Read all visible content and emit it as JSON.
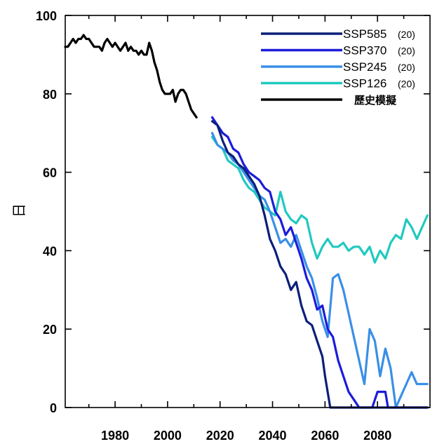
{
  "chart_data": {
    "type": "line",
    "title": "",
    "xlabel": "",
    "ylabel": "日",
    "xlim": [
      1961,
      2100
    ],
    "ylim": [
      0,
      100
    ],
    "x_ticks": [
      1980,
      2000,
      2020,
      2040,
      2060,
      2080
    ],
    "y_ticks": [
      0,
      20,
      40,
      60,
      80,
      100
    ],
    "grid": false,
    "legend_position": "top-right",
    "series": [
      {
        "name": "SSP585",
        "count_label": "(20)",
        "color": "#0b1f7a",
        "points": [
          [
            2017,
            73
          ],
          [
            2019,
            72
          ],
          [
            2021,
            68
          ],
          [
            2023,
            65
          ],
          [
            2025,
            64
          ],
          [
            2027,
            62
          ],
          [
            2029,
            61
          ],
          [
            2031,
            59
          ],
          [
            2033,
            57
          ],
          [
            2035,
            54
          ],
          [
            2037,
            49
          ],
          [
            2039,
            43
          ],
          [
            2041,
            40
          ],
          [
            2043,
            36
          ],
          [
            2045,
            34
          ],
          [
            2047,
            30
          ],
          [
            2049,
            32
          ],
          [
            2051,
            26
          ],
          [
            2053,
            22
          ],
          [
            2055,
            21
          ],
          [
            2057,
            17
          ],
          [
            2059,
            13
          ],
          [
            2060,
            8
          ],
          [
            2061,
            4
          ],
          [
            2062,
            0
          ],
          [
            2070,
            0
          ],
          [
            2080,
            0
          ],
          [
            2090,
            0
          ],
          [
            2099,
            0
          ]
        ]
      },
      {
        "name": "SSP370",
        "count_label": "(20)",
        "color": "#1c1cdb",
        "points": [
          [
            2017,
            74
          ],
          [
            2019,
            72
          ],
          [
            2021,
            70
          ],
          [
            2023,
            69
          ],
          [
            2025,
            66
          ],
          [
            2027,
            65
          ],
          [
            2029,
            62
          ],
          [
            2031,
            60
          ],
          [
            2033,
            59
          ],
          [
            2035,
            58
          ],
          [
            2037,
            56
          ],
          [
            2039,
            55
          ],
          [
            2041,
            50
          ],
          [
            2043,
            48
          ],
          [
            2045,
            44
          ],
          [
            2047,
            46
          ],
          [
            2049,
            42
          ],
          [
            2051,
            38
          ],
          [
            2053,
            33
          ],
          [
            2055,
            30
          ],
          [
            2057,
            25
          ],
          [
            2059,
            26
          ],
          [
            2061,
            20
          ],
          [
            2063,
            18
          ],
          [
            2065,
            12
          ],
          [
            2067,
            8
          ],
          [
            2069,
            4
          ],
          [
            2071,
            2
          ],
          [
            2073,
            0
          ],
          [
            2078,
            0
          ],
          [
            2080,
            4
          ],
          [
            2083,
            4
          ],
          [
            2084,
            0
          ],
          [
            2090,
            0
          ],
          [
            2099,
            0
          ]
        ]
      },
      {
        "name": "SSP245",
        "count_label": "(20)",
        "color": "#3a8fe8",
        "points": [
          [
            2017,
            70
          ],
          [
            2019,
            67
          ],
          [
            2021,
            66
          ],
          [
            2023,
            65
          ],
          [
            2025,
            63
          ],
          [
            2027,
            62
          ],
          [
            2029,
            60
          ],
          [
            2031,
            58
          ],
          [
            2033,
            56
          ],
          [
            2035,
            54
          ],
          [
            2037,
            53
          ],
          [
            2039,
            50
          ],
          [
            2041,
            46
          ],
          [
            2043,
            42
          ],
          [
            2045,
            43
          ],
          [
            2047,
            41
          ],
          [
            2049,
            44
          ],
          [
            2051,
            40
          ],
          [
            2053,
            36
          ],
          [
            2055,
            33
          ],
          [
            2057,
            28
          ],
          [
            2059,
            22
          ],
          [
            2061,
            18
          ],
          [
            2063,
            33
          ],
          [
            2065,
            34
          ],
          [
            2067,
            30
          ],
          [
            2069,
            24
          ],
          [
            2071,
            18
          ],
          [
            2073,
            12
          ],
          [
            2075,
            6
          ],
          [
            2077,
            20
          ],
          [
            2079,
            17
          ],
          [
            2081,
            8
          ],
          [
            2083,
            15
          ],
          [
            2085,
            10
          ],
          [
            2087,
            0
          ],
          [
            2089,
            3
          ],
          [
            2091,
            6
          ],
          [
            2093,
            9
          ],
          [
            2095,
            6
          ],
          [
            2097,
            6
          ],
          [
            2099,
            6
          ]
        ]
      },
      {
        "name": "SSP126",
        "count_label": "(20)",
        "color": "#20c9c0",
        "points": [
          [
            2017,
            69
          ],
          [
            2019,
            67
          ],
          [
            2021,
            66
          ],
          [
            2023,
            63
          ],
          [
            2025,
            62
          ],
          [
            2027,
            61
          ],
          [
            2029,
            58
          ],
          [
            2031,
            56
          ],
          [
            2033,
            55
          ],
          [
            2035,
            53
          ],
          [
            2037,
            51
          ],
          [
            2039,
            50
          ],
          [
            2041,
            49
          ],
          [
            2043,
            55
          ],
          [
            2045,
            50
          ],
          [
            2047,
            48
          ],
          [
            2049,
            47
          ],
          [
            2051,
            49
          ],
          [
            2053,
            48
          ],
          [
            2055,
            42
          ],
          [
            2057,
            38
          ],
          [
            2059,
            41
          ],
          [
            2061,
            43
          ],
          [
            2063,
            41
          ],
          [
            2065,
            41
          ],
          [
            2067,
            42
          ],
          [
            2069,
            40
          ],
          [
            2071,
            41
          ],
          [
            2073,
            41
          ],
          [
            2075,
            39
          ],
          [
            2077,
            41
          ],
          [
            2079,
            37
          ],
          [
            2081,
            40
          ],
          [
            2083,
            38
          ],
          [
            2085,
            42
          ],
          [
            2087,
            44
          ],
          [
            2089,
            43
          ],
          [
            2091,
            48
          ],
          [
            2093,
            46
          ],
          [
            2095,
            43
          ],
          [
            2097,
            46
          ],
          [
            2099,
            49
          ]
        ]
      },
      {
        "name": "歷史模擬",
        "count_label": "",
        "color": "#000000",
        "points": [
          [
            1961,
            92
          ],
          [
            1962,
            92
          ],
          [
            1963,
            93
          ],
          [
            1964,
            94
          ],
          [
            1965,
            93
          ],
          [
            1966,
            94
          ],
          [
            1967,
            94
          ],
          [
            1968,
            95
          ],
          [
            1969,
            94
          ],
          [
            1970,
            94
          ],
          [
            1971,
            93
          ],
          [
            1972,
            92
          ],
          [
            1973,
            92
          ],
          [
            1974,
            92
          ],
          [
            1975,
            91
          ],
          [
            1976,
            93
          ],
          [
            1977,
            94
          ],
          [
            1978,
            93
          ],
          [
            1979,
            92
          ],
          [
            1980,
            93
          ],
          [
            1981,
            92
          ],
          [
            1982,
            91
          ],
          [
            1983,
            92
          ],
          [
            1984,
            93
          ],
          [
            1985,
            91
          ],
          [
            1986,
            92
          ],
          [
            1987,
            91
          ],
          [
            1988,
            91
          ],
          [
            1989,
            90
          ],
          [
            1990,
            91
          ],
          [
            1991,
            90
          ],
          [
            1992,
            90
          ],
          [
            1993,
            93
          ],
          [
            1994,
            91
          ],
          [
            1995,
            88
          ],
          [
            1996,
            86
          ],
          [
            1997,
            83
          ],
          [
            1998,
            81
          ],
          [
            1999,
            80
          ],
          [
            2000,
            80
          ],
          [
            2001,
            80
          ],
          [
            2002,
            81
          ],
          [
            2003,
            78
          ],
          [
            2004,
            80
          ],
          [
            2005,
            81
          ],
          [
            2006,
            81
          ],
          [
            2007,
            80
          ],
          [
            2008,
            78
          ],
          [
            2009,
            76
          ],
          [
            2010,
            75
          ],
          [
            2011,
            74
          ]
        ]
      }
    ]
  }
}
